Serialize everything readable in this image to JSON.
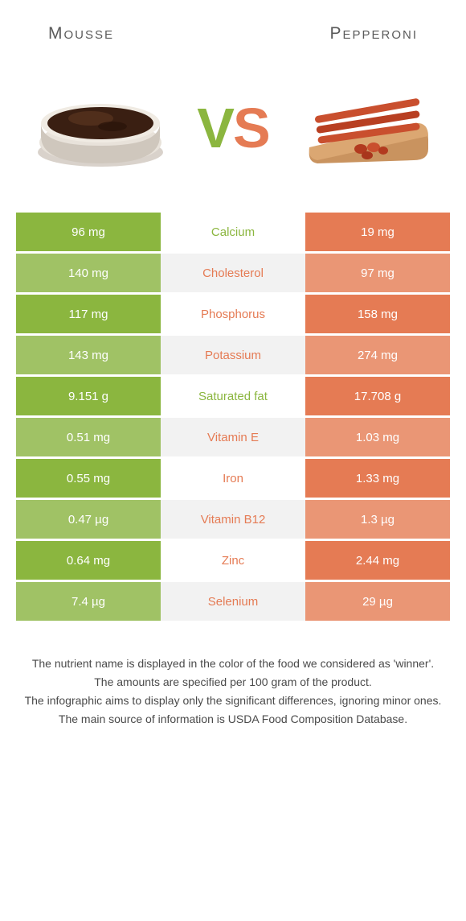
{
  "colors": {
    "left_food": "#8bb63f",
    "right_food": "#e57b54",
    "left_row_odd": "#8bb63f",
    "left_row_even": "#a0c265",
    "right_row_odd": "#e57b54",
    "right_row_even": "#ea9675",
    "mid_row_odd": "#ffffff",
    "mid_row_even": "#f2f2f2",
    "text_dark": "#5a5a5a"
  },
  "header": {
    "left_title": "Mousse",
    "right_title": "Pepperoni"
  },
  "vs": {
    "v": "V",
    "s": "S"
  },
  "rows": [
    {
      "nutrient": "Calcium",
      "left": "96 mg",
      "right": "19 mg",
      "winner": "left"
    },
    {
      "nutrient": "Cholesterol",
      "left": "140 mg",
      "right": "97 mg",
      "winner": "right"
    },
    {
      "nutrient": "Phosphorus",
      "left": "117 mg",
      "right": "158 mg",
      "winner": "right"
    },
    {
      "nutrient": "Potassium",
      "left": "143 mg",
      "right": "274 mg",
      "winner": "right"
    },
    {
      "nutrient": "Saturated fat",
      "left": "9.151 g",
      "right": "17.708 g",
      "winner": "left"
    },
    {
      "nutrient": "Vitamin E",
      "left": "0.51 mg",
      "right": "1.03 mg",
      "winner": "right"
    },
    {
      "nutrient": "Iron",
      "left": "0.55 mg",
      "right": "1.33 mg",
      "winner": "right"
    },
    {
      "nutrient": "Vitamin B12",
      "left": "0.47 µg",
      "right": "1.3 µg",
      "winner": "right"
    },
    {
      "nutrient": "Zinc",
      "left": "0.64 mg",
      "right": "2.44 mg",
      "winner": "right"
    },
    {
      "nutrient": "Selenium",
      "left": "7.4 µg",
      "right": "29 µg",
      "winner": "right"
    }
  ],
  "footnotes": [
    "The nutrient name is displayed in the color of the food we considered as 'winner'.",
    "The amounts are specified per 100 gram of the product.",
    "The infographic aims to display only the significant differences, ignoring minor ones.",
    "The main source of information is USDA Food Composition Database."
  ]
}
